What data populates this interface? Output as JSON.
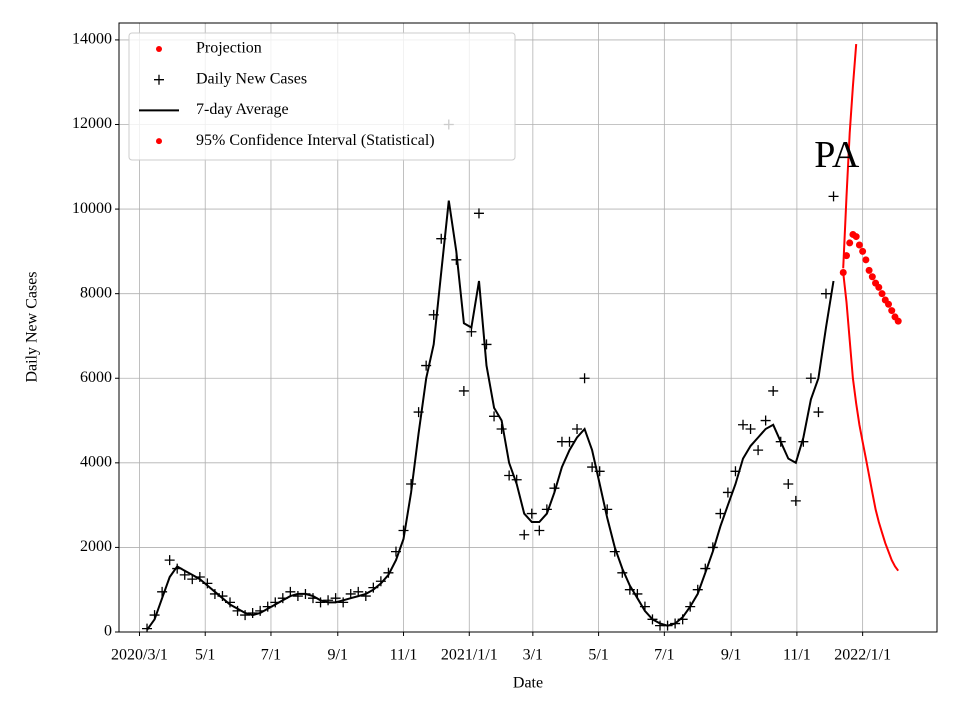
{
  "chart_data": {
    "type": "line",
    "title": "PA",
    "xlabel": "Date",
    "ylabel": "Daily New Cases",
    "xlim": [
      "2020-02-11",
      "2022-03-11"
    ],
    "xticks": [
      {
        "value": "2020-03-01",
        "label": "2020/3/1"
      },
      {
        "value": "2020-05-01",
        "label": "5/1"
      },
      {
        "value": "2020-07-01",
        "label": "7/1"
      },
      {
        "value": "2020-09-01",
        "label": "9/1"
      },
      {
        "value": "2020-11-01",
        "label": "11/1"
      },
      {
        "value": "2021-01-01",
        "label": "2021/1/1"
      },
      {
        "value": "2021-03-01",
        "label": "3/1"
      },
      {
        "value": "2021-05-01",
        "label": "5/1"
      },
      {
        "value": "2021-07-01",
        "label": "7/1"
      },
      {
        "value": "2021-09-01",
        "label": "9/1"
      },
      {
        "value": "2021-11-01",
        "label": "11/1"
      },
      {
        "value": "2022-01-01",
        "label": "2022/1/1"
      }
    ],
    "ylim": [
      0,
      14400
    ],
    "yticks": [
      0,
      2000,
      4000,
      6000,
      8000,
      10000,
      12000,
      14000
    ],
    "grid": true,
    "legend": "upper left",
    "x": [
      "2020-03-08",
      "2020-03-15",
      "2020-03-22",
      "2020-03-29",
      "2020-04-05",
      "2020-04-12",
      "2020-04-19",
      "2020-04-26",
      "2020-05-03",
      "2020-05-10",
      "2020-05-17",
      "2020-05-24",
      "2020-05-31",
      "2020-06-07",
      "2020-06-14",
      "2020-06-21",
      "2020-06-28",
      "2020-07-05",
      "2020-07-12",
      "2020-07-19",
      "2020-07-26",
      "2020-08-02",
      "2020-08-09",
      "2020-08-16",
      "2020-08-23",
      "2020-08-30",
      "2020-09-06",
      "2020-09-13",
      "2020-09-20",
      "2020-09-27",
      "2020-10-04",
      "2020-10-11",
      "2020-10-18",
      "2020-10-25",
      "2020-11-01",
      "2020-11-08",
      "2020-11-15",
      "2020-11-22",
      "2020-11-29",
      "2020-12-06",
      "2020-12-13",
      "2020-12-20",
      "2020-12-27",
      "2021-01-03",
      "2021-01-10",
      "2021-01-17",
      "2021-01-24",
      "2021-01-31",
      "2021-02-07",
      "2021-02-14",
      "2021-02-21",
      "2021-02-28",
      "2021-03-07",
      "2021-03-14",
      "2021-03-21",
      "2021-03-28",
      "2021-04-04",
      "2021-04-11",
      "2021-04-18",
      "2021-04-25",
      "2021-05-02",
      "2021-05-09",
      "2021-05-16",
      "2021-05-23",
      "2021-05-30",
      "2021-06-06",
      "2021-06-13",
      "2021-06-20",
      "2021-06-27",
      "2021-07-04",
      "2021-07-11",
      "2021-07-18",
      "2021-07-25",
      "2021-08-01",
      "2021-08-08",
      "2021-08-15",
      "2021-08-22",
      "2021-08-29",
      "2021-09-05",
      "2021-09-12",
      "2021-09-19",
      "2021-09-26",
      "2021-10-03",
      "2021-10-10",
      "2021-10-17",
      "2021-10-24",
      "2021-10-31",
      "2021-11-07",
      "2021-11-14",
      "2021-11-21",
      "2021-11-28",
      "2021-12-05"
    ],
    "series": [
      {
        "name": "Daily New Cases",
        "color": "#000000",
        "marker": "+",
        "values": [
          80,
          400,
          950,
          1700,
          1500,
          1350,
          1250,
          1300,
          1150,
          900,
          850,
          700,
          500,
          400,
          450,
          500,
          600,
          700,
          800,
          950,
          850,
          900,
          800,
          700,
          750,
          800,
          700,
          900,
          950,
          850,
          1050,
          1200,
          1400,
          1900,
          2400,
          3500,
          5200,
          6300,
          7500,
          9300,
          12000,
          8800,
          5700,
          7100,
          9900,
          6800,
          5100,
          4800,
          3700,
          3600,
          2300,
          2800,
          2400,
          2900,
          3400,
          4500,
          4500,
          4800,
          6000,
          3900,
          3800,
          2900,
          1900,
          1400,
          1000,
          900,
          600,
          300,
          150,
          150,
          200,
          300,
          600,
          1000,
          1500,
          2000,
          2800,
          3300,
          3800,
          4900,
          4800,
          4300,
          5000,
          5700,
          4500,
          3500,
          3100,
          4500,
          6000,
          5200,
          8000,
          10300
        ]
      },
      {
        "name": "7-day Average",
        "color": "#000000",
        "marker": "line",
        "values": [
          50,
          300,
          800,
          1300,
          1550,
          1450,
          1350,
          1250,
          1100,
          950,
          800,
          650,
          550,
          450,
          400,
          450,
          550,
          650,
          750,
          850,
          900,
          900,
          850,
          750,
          700,
          700,
          750,
          800,
          850,
          900,
          1000,
          1150,
          1350,
          1700,
          2200,
          3300,
          4700,
          6000,
          6800,
          8500,
          10200,
          9000,
          7300,
          7200,
          8300,
          6300,
          5300,
          5000,
          4000,
          3500,
          2800,
          2600,
          2600,
          2800,
          3300,
          3900,
          4300,
          4600,
          4800,
          4300,
          3500,
          2700,
          2000,
          1500,
          1100,
          800,
          500,
          300,
          200,
          150,
          200,
          350,
          600,
          900,
          1400,
          1900,
          2500,
          3000,
          3500,
          4100,
          4400,
          4600,
          4800,
          4900,
          4500,
          4100,
          4000,
          4600,
          5500,
          6000,
          7200,
          8300
        ]
      }
    ],
    "projection": {
      "name": "Projection",
      "color": "#ff0000",
      "x": [
        "2021-12-14",
        "2021-12-17",
        "2021-12-20",
        "2021-12-23",
        "2021-12-26",
        "2021-12-29",
        "2022-01-01",
        "2022-01-04",
        "2022-01-07",
        "2022-01-10",
        "2022-01-13",
        "2022-01-16",
        "2022-01-19",
        "2022-01-22",
        "2022-01-25",
        "2022-01-28",
        "2022-01-31",
        "2022-02-03"
      ],
      "values": [
        8500,
        8900,
        9200,
        9400,
        9350,
        9150,
        9000,
        8800,
        8550,
        8400,
        8250,
        8150,
        8000,
        7850,
        7750,
        7600,
        7450,
        7350
      ]
    },
    "confidence_interval": {
      "name": "95% Confidence Interval (Statistical)",
      "color": "#ff0000",
      "upper": [
        8600,
        10300,
        11800,
        12900,
        13900,
        null,
        null,
        null,
        null,
        null,
        null,
        null,
        null,
        null,
        null,
        null,
        null,
        null
      ],
      "lower": [
        8500,
        7800,
        6900,
        6000,
        5400,
        4900,
        4500,
        4100,
        3700,
        3300,
        2900,
        2600,
        2350,
        2100,
        1900,
        1700,
        1550,
        1450
      ]
    },
    "title_position": {
      "x": "2021-12-08",
      "y": 11200
    }
  }
}
